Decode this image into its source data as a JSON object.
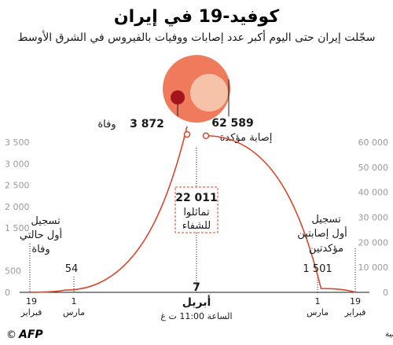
{
  "header": {
    "title": "كوفيد-19 في إيران",
    "subtitle": "سجّلت إيران حتى اليوم أكبر عدد إصابات ووفيات بالفيروس في الشرق الأوسط"
  },
  "summary": {
    "deaths_value": "3 872",
    "deaths_label": "وفاة",
    "cases_value": "62 589",
    "cases_label": "إصابة مؤكدة"
  },
  "recovered": {
    "value": "22 011",
    "line1": "تماثلوا",
    "line2": "للشفاء"
  },
  "annotations": {
    "deaths_first_l1": "تسجيل",
    "deaths_first_l2": "أول حالتي",
    "deaths_first_l3": "وفاة",
    "cases_first_l1": "تسجيل",
    "cases_first_l2": "أول إصابتين",
    "cases_first_l3": "مؤكدتين",
    "deaths_mar1": "54",
    "cases_mar1": "1 501"
  },
  "center_axis": {
    "day": "7",
    "month": "أبريل",
    "time": "الساعة 11:00 ت غ"
  },
  "dates": {
    "left_start_day": "19",
    "left_start_month": "فبراير",
    "left_mar_day": "1",
    "left_mar_month": "مارس",
    "right_mar_day": "1",
    "right_mar_month": "مارس",
    "right_start_day": "19",
    "right_start_month": "فبراير"
  },
  "footer": {
    "source": "المصدر: تعداد لفرانس برس استنادا إلى المراجع الرسمية",
    "logo": "AFP",
    "copyright": "©"
  },
  "colors": {
    "curve": "#d9472b",
    "circle_cases": "#ef7a5c",
    "circle_recovered": "#f6c2a8",
    "circle_deaths": "#a3141c",
    "text": "#1a1a1a",
    "tick": "#9a9a9a"
  },
  "chart_data": [
    {
      "type": "area",
      "name": "deaths",
      "x": [
        "2020-02-19",
        "2020-03-01",
        "2020-04-07"
      ],
      "y": [
        2,
        54,
        3872
      ],
      "ylim": [
        0,
        3500
      ],
      "yticks": [
        "0",
        "500",
        "1 500",
        "2 000",
        "2 500",
        "3 000",
        "3 500"
      ],
      "ytick_values": [
        0,
        500,
        1500,
        2000,
        2500,
        3000,
        3500
      ]
    },
    {
      "type": "area",
      "name": "confirmed cases",
      "x": [
        "2020-04-07",
        "2020-03-01",
        "2020-02-19"
      ],
      "y": [
        62589,
        1501,
        2
      ],
      "ylim": [
        0,
        60000
      ],
      "yticks": [
        "0",
        "10 000",
        "20 000",
        "30 000",
        "40 000",
        "50 000",
        "60 000"
      ],
      "ytick_values": [
        0,
        10000,
        20000,
        30000,
        40000,
        50000,
        60000
      ]
    }
  ]
}
